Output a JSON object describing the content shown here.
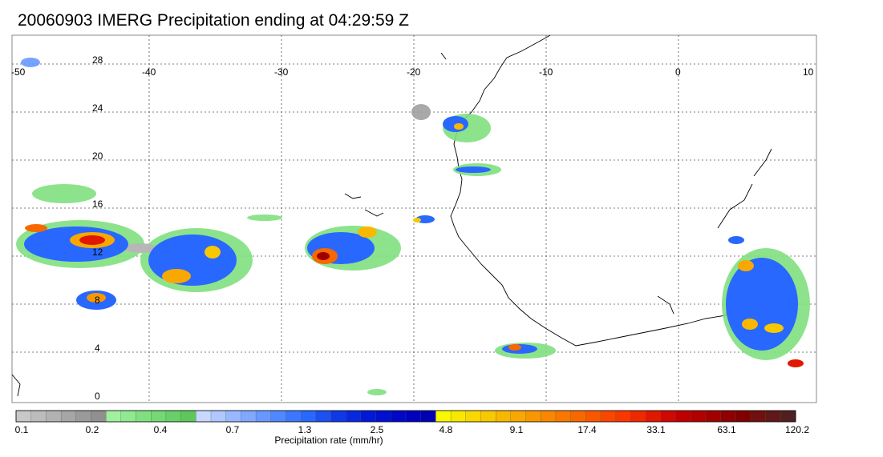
{
  "title": "20060903 IMERG Precipitation ending at 04:29:59 Z",
  "lon_labels": [
    "-50",
    "-40",
    "-30",
    "-20",
    "-10",
    "0",
    "10"
  ],
  "lat_labels": [
    "28",
    "24",
    "20",
    "16",
    "12",
    "8",
    "4",
    "0"
  ],
  "colorbar": {
    "title": "Precipitation rate (mm/hr)",
    "tick_labels": [
      "0.1",
      "0.2",
      "0.4",
      "0.7",
      "1.3",
      "2.5",
      "4.8",
      "9.1",
      "17.4",
      "33.1",
      "63.1",
      "120.2"
    ],
    "colors": [
      "#c8c8c8",
      "#bcbcbc",
      "#b2b2b2",
      "#a6a6a6",
      "#9a9a9a",
      "#909090",
      "#a0f0a0",
      "#90e890",
      "#80e080",
      "#74d874",
      "#68d068",
      "#5cc85c",
      "#c8d8ff",
      "#b0c8ff",
      "#98b8ff",
      "#80a8ff",
      "#6898ff",
      "#5088ff",
      "#3c78ff",
      "#2868ff",
      "#1c50f0",
      "#1038e8",
      "#0828e0",
      "#0018d8",
      "#0010d0",
      "#0008c8",
      "#0000c0",
      "#0000b4",
      "#f8f800",
      "#f8e800",
      "#f8d800",
      "#f8c800",
      "#f8b800",
      "#f8a800",
      "#f89800",
      "#f88800",
      "#f87800",
      "#f86800",
      "#f85800",
      "#f84800",
      "#f83800",
      "#f02800",
      "#e01800",
      "#d00800",
      "#c00000",
      "#b00000",
      "#a00000",
      "#900000",
      "#800000",
      "#701010",
      "#601818",
      "#502020"
    ]
  }
}
